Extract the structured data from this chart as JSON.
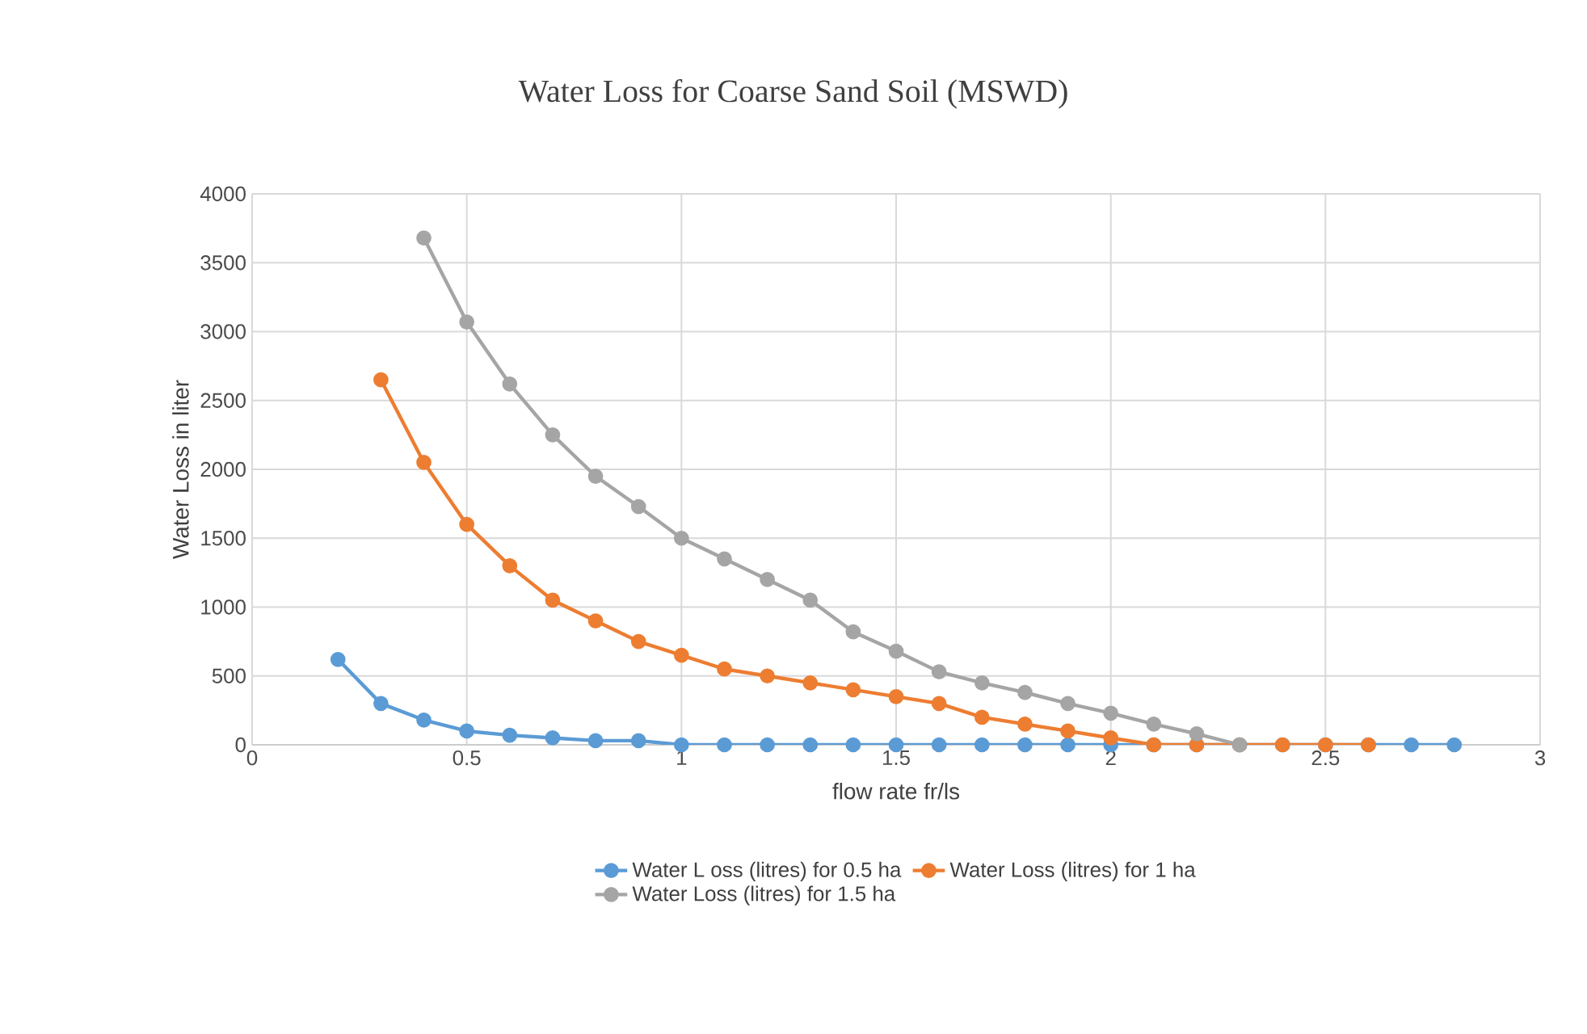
{
  "chart_data": {
    "type": "line",
    "title": "Water Loss for Coarse Sand Soil (MSWD)",
    "xlabel": "flow rate fr/ls",
    "ylabel": "Water Loss in liter",
    "series": [
      {
        "name": "Water L oss (litres) for 0.5 ha",
        "color": "#5b9bd5",
        "x": [
          0.2,
          0.3,
          0.4,
          0.5,
          0.6,
          0.7,
          0.8,
          0.9,
          1.0,
          1.1,
          1.2,
          1.3,
          1.4,
          1.5,
          1.6,
          1.7,
          1.8,
          1.9,
          2.0,
          2.1,
          2.2,
          2.3,
          2.4,
          2.5,
          2.6,
          2.7,
          2.8
        ],
        "values": [
          620,
          300,
          180,
          100,
          70,
          50,
          30,
          30,
          0,
          0,
          0,
          0,
          0,
          0,
          0,
          0,
          0,
          0,
          0,
          0,
          0,
          0,
          0,
          0,
          0,
          0,
          0
        ]
      },
      {
        "name": "Water Loss (litres) for 1 ha",
        "color": "#ed7d31",
        "x": [
          0.3,
          0.4,
          0.5,
          0.6,
          0.7,
          0.8,
          0.9,
          1.0,
          1.1,
          1.2,
          1.3,
          1.4,
          1.5,
          1.6,
          1.7,
          1.8,
          1.9,
          2.0,
          2.1,
          2.2,
          2.3,
          2.4,
          2.5,
          2.6
        ],
        "values": [
          2650,
          2050,
          1600,
          1300,
          1050,
          900,
          750,
          650,
          550,
          500,
          450,
          400,
          350,
          300,
          200,
          150,
          100,
          50,
          0,
          0,
          0,
          0,
          0,
          0
        ]
      },
      {
        "name": "Water Loss (litres) for 1.5 ha",
        "color": "#a5a5a5",
        "x": [
          0.4,
          0.5,
          0.6,
          0.7,
          0.8,
          0.9,
          1.0,
          1.1,
          1.2,
          1.3,
          1.4,
          1.5,
          1.6,
          1.7,
          1.8,
          1.9,
          2.0,
          2.1,
          2.2,
          2.3
        ],
        "values": [
          3680,
          3070,
          2620,
          2250,
          1950,
          1730,
          1500,
          1350,
          1200,
          1050,
          820,
          680,
          530,
          450,
          380,
          300,
          230,
          150,
          80,
          0
        ]
      }
    ],
    "xlim": [
      0,
      3
    ],
    "xticks": [
      0,
      0.5,
      1,
      1.5,
      2,
      2.5,
      3
    ],
    "ylim": [
      0,
      4000
    ],
    "yticks": [
      0,
      500,
      1000,
      1500,
      2000,
      2500,
      3000,
      3500,
      4000
    ],
    "grid": true,
    "legend": "bottom",
    "marker": "circle",
    "line_style": "solid"
  }
}
